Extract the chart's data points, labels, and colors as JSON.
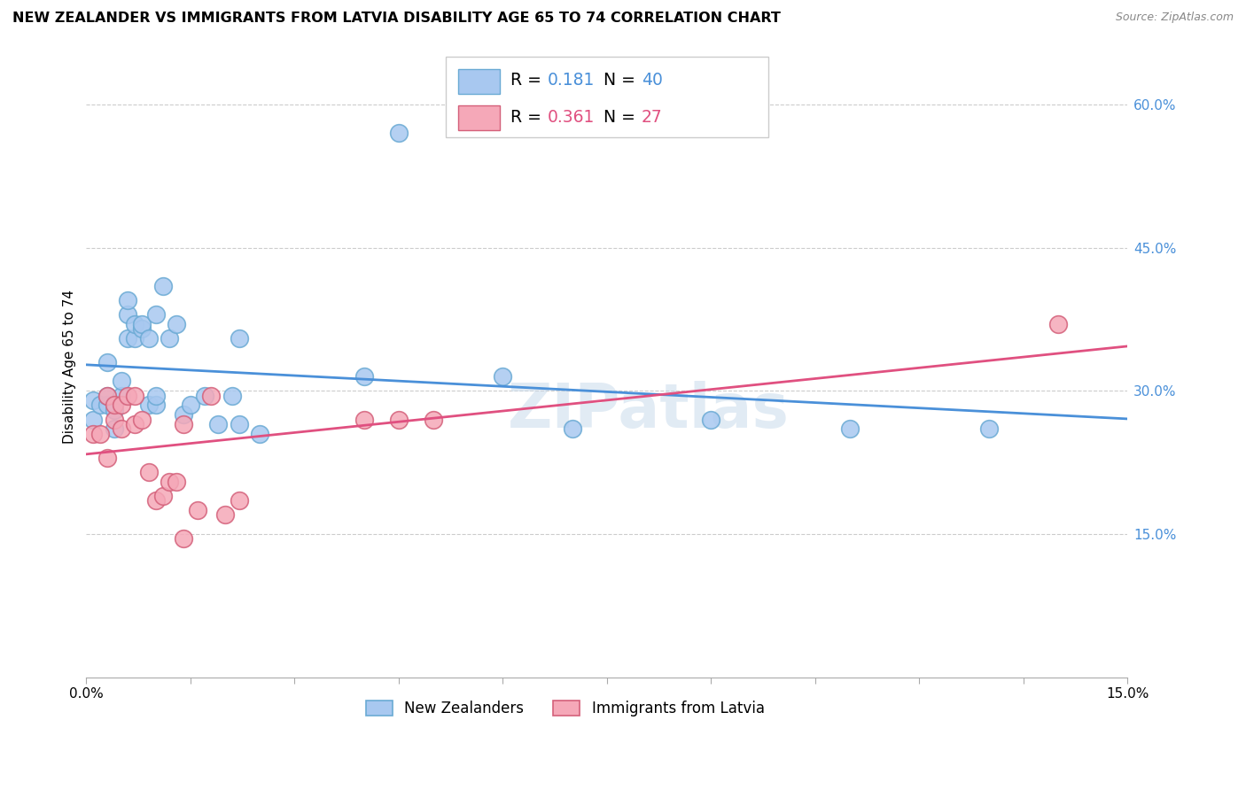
{
  "title": "NEW ZEALANDER VS IMMIGRANTS FROM LATVIA DISABILITY AGE 65 TO 74 CORRELATION CHART",
  "source": "Source: ZipAtlas.com",
  "ylabel": "Disability Age 65 to 74",
  "xlim": [
    0.0,
    0.15
  ],
  "ylim": [
    0.0,
    0.65
  ],
  "ytick_vals": [
    0.15,
    0.3,
    0.45,
    0.6
  ],
  "ytick_labels": [
    "15.0%",
    "30.0%",
    "45.0%",
    "60.0%"
  ],
  "xtick_pos": [
    0.0,
    0.015,
    0.03,
    0.045,
    0.06,
    0.075,
    0.09,
    0.105,
    0.12,
    0.135,
    0.15
  ],
  "xtick_labels": [
    "0.0%",
    "",
    "",
    "",
    "",
    "",
    "",
    "",
    "",
    "",
    "15.0%"
  ],
  "nz_color": "#a8c8f0",
  "nz_edge_color": "#6aaad4",
  "imm_color": "#f5a8b8",
  "imm_edge_color": "#d4607a",
  "trend_blue": "#4a90d9",
  "trend_pink": "#e05080",
  "watermark": "ZIPatlas",
  "R_nz": "0.181",
  "N_nz": "40",
  "R_imm": "0.361",
  "N_imm": "27",
  "nz_label": "New Zealanders",
  "imm_label": "Immigrants from Latvia",
  "nz_x": [
    0.001,
    0.001,
    0.002,
    0.003,
    0.003,
    0.003,
    0.004,
    0.004,
    0.005,
    0.005,
    0.006,
    0.006,
    0.006,
    0.007,
    0.007,
    0.008,
    0.008,
    0.009,
    0.009,
    0.01,
    0.01,
    0.01,
    0.011,
    0.012,
    0.013,
    0.014,
    0.015,
    0.017,
    0.019,
    0.021,
    0.022,
    0.022,
    0.025,
    0.04,
    0.045,
    0.06,
    0.07,
    0.09,
    0.11,
    0.13
  ],
  "nz_y": [
    0.27,
    0.29,
    0.285,
    0.285,
    0.295,
    0.33,
    0.26,
    0.28,
    0.295,
    0.31,
    0.355,
    0.38,
    0.395,
    0.355,
    0.37,
    0.365,
    0.37,
    0.285,
    0.355,
    0.285,
    0.295,
    0.38,
    0.41,
    0.355,
    0.37,
    0.275,
    0.285,
    0.295,
    0.265,
    0.295,
    0.265,
    0.355,
    0.255,
    0.315,
    0.57,
    0.315,
    0.26,
    0.27,
    0.26,
    0.26
  ],
  "imm_x": [
    0.001,
    0.002,
    0.003,
    0.003,
    0.004,
    0.004,
    0.005,
    0.005,
    0.006,
    0.007,
    0.007,
    0.008,
    0.009,
    0.01,
    0.011,
    0.012,
    0.013,
    0.014,
    0.014,
    0.016,
    0.018,
    0.02,
    0.022,
    0.04,
    0.045,
    0.05,
    0.14
  ],
  "imm_y": [
    0.255,
    0.255,
    0.23,
    0.295,
    0.27,
    0.285,
    0.285,
    0.26,
    0.295,
    0.295,
    0.265,
    0.27,
    0.215,
    0.185,
    0.19,
    0.205,
    0.205,
    0.265,
    0.145,
    0.175,
    0.295,
    0.17,
    0.185,
    0.27,
    0.27,
    0.27,
    0.37
  ]
}
